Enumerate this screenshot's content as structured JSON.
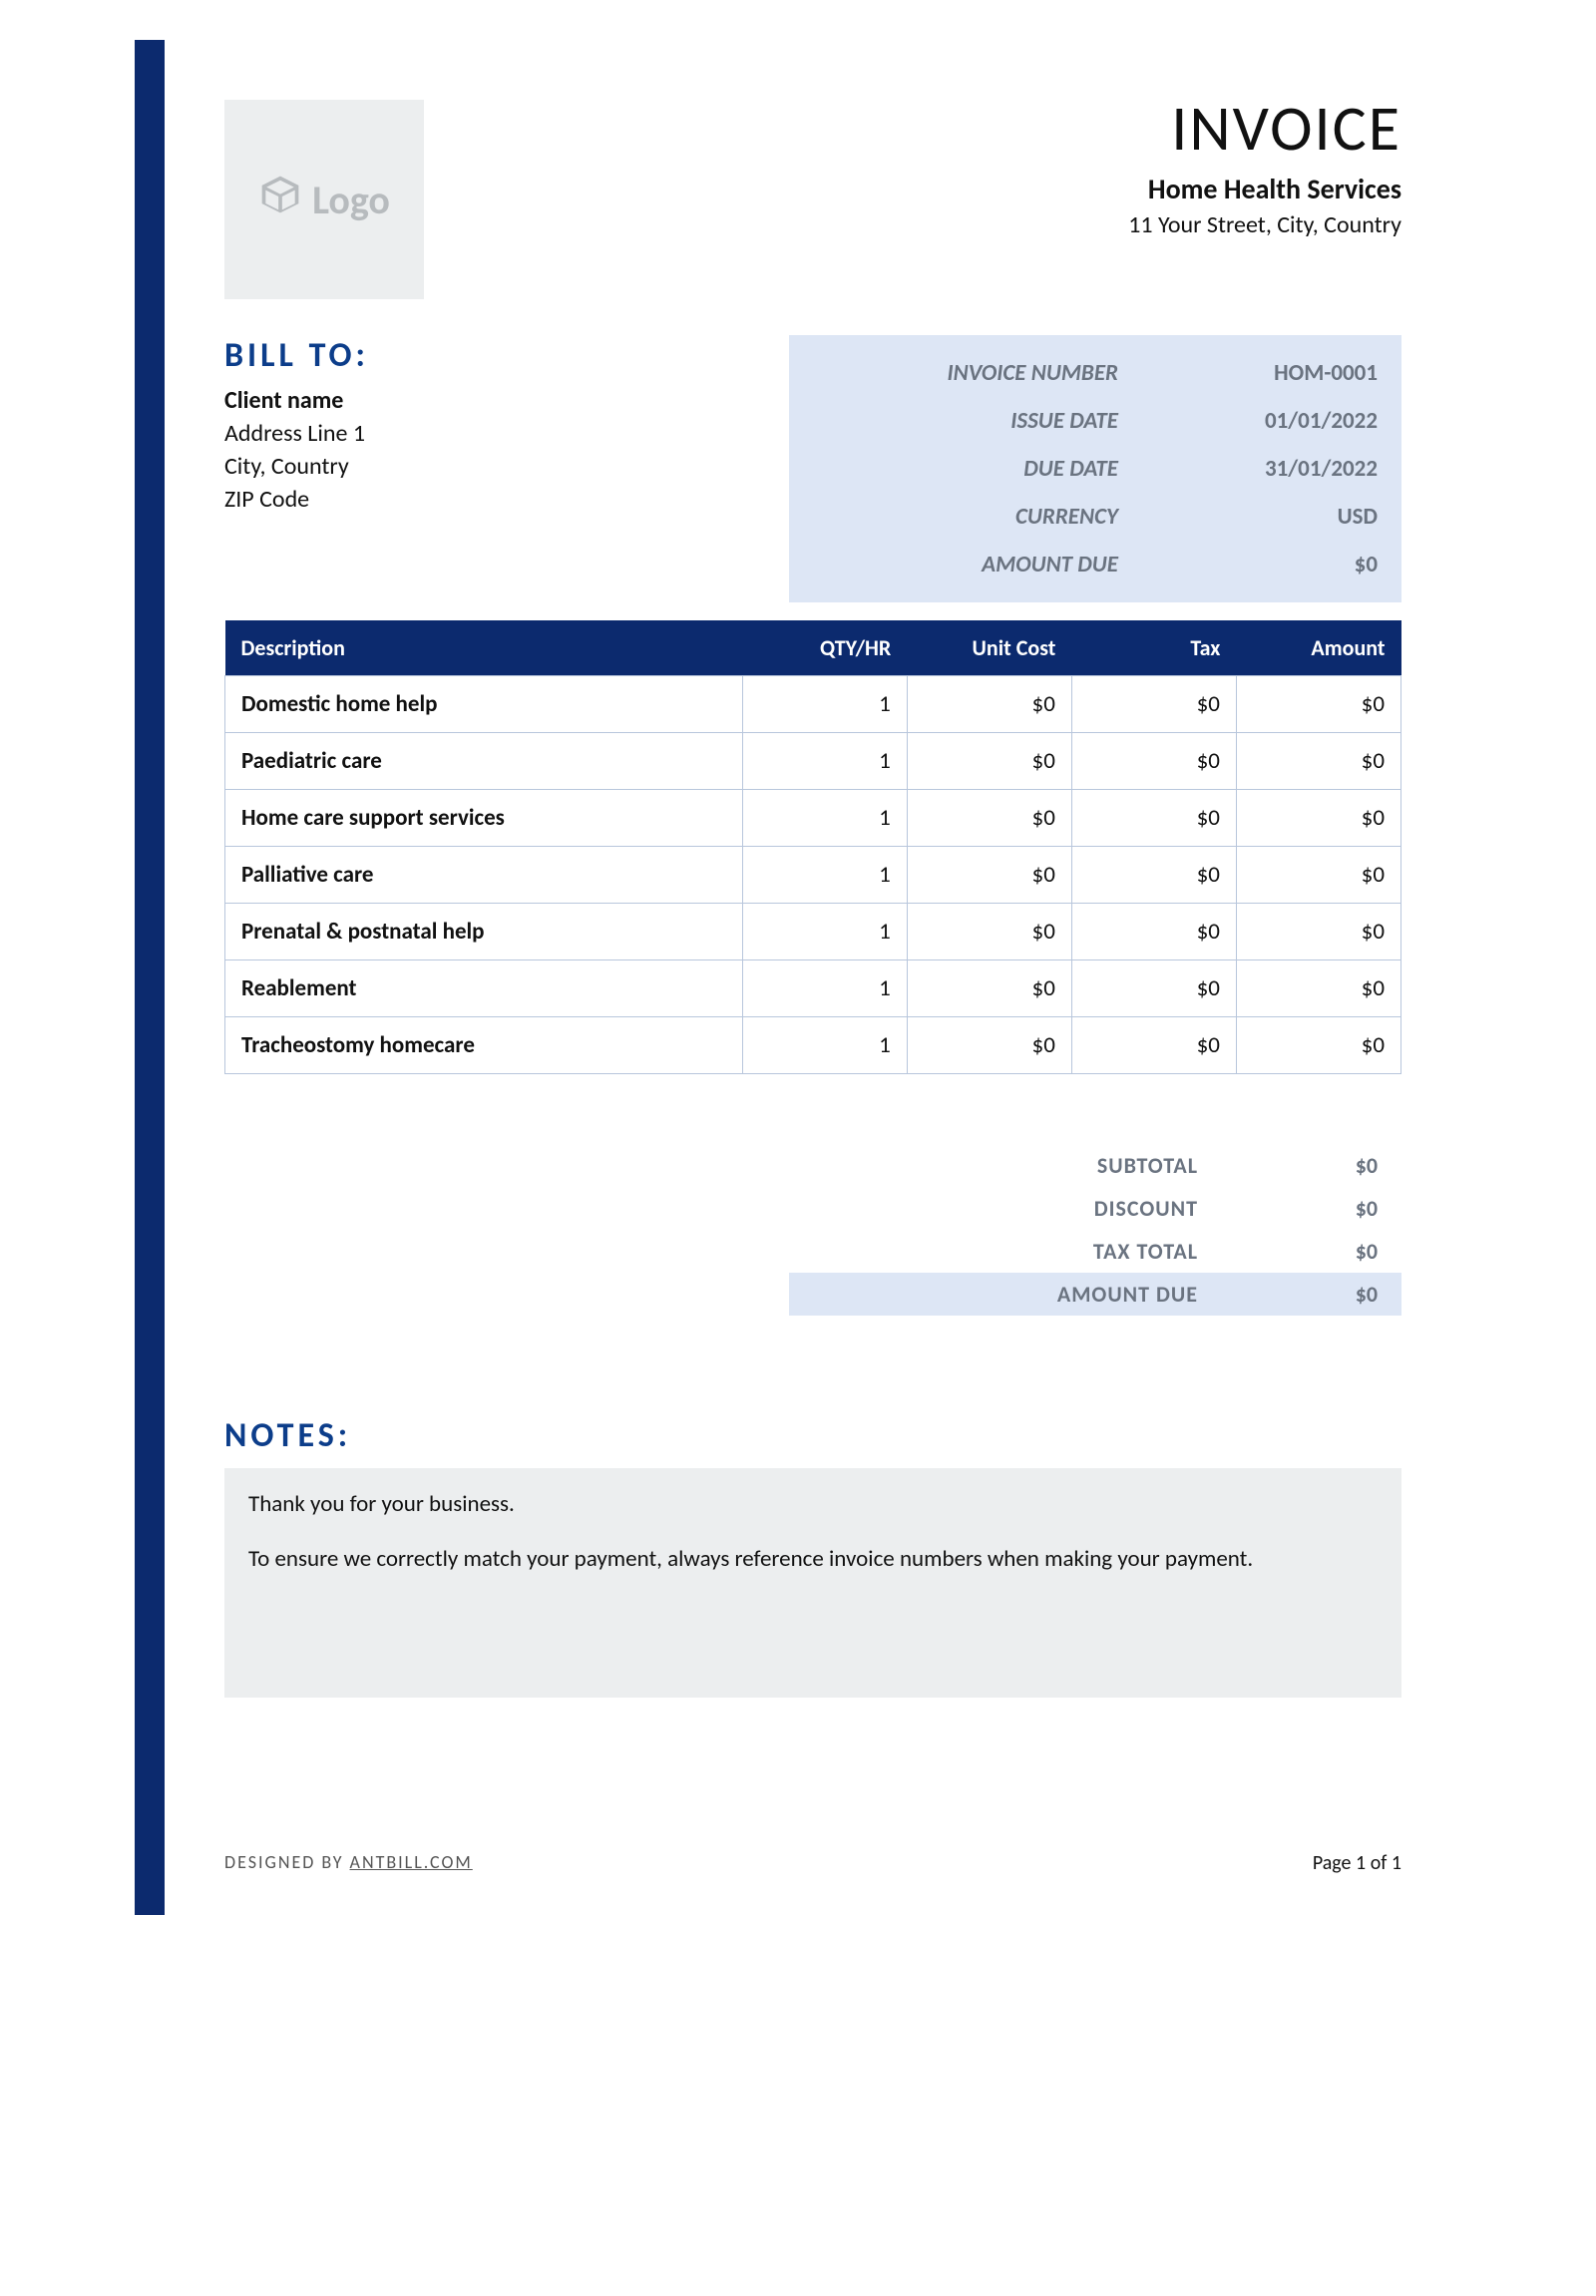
{
  "colors": {
    "accent_bar": "#0c2a6e",
    "table_header_bg": "#0c2a6e",
    "meta_box_bg": "#dde6f5",
    "notes_bg": "#eceeef",
    "logo_bg": "#eceeef",
    "text_muted": "#6a7380",
    "section_title": "#0c3d8a",
    "cell_border": "#b8c6dc"
  },
  "logo": {
    "text": "Logo"
  },
  "header": {
    "title": "INVOICE",
    "company_name": "Home Health Services",
    "company_address": "11 Your Street, City, Country"
  },
  "bill_to": {
    "heading": "BILL TO:",
    "client_name": "Client name",
    "lines": [
      "Address Line 1",
      "City, Country",
      "ZIP Code"
    ]
  },
  "meta": {
    "rows": [
      {
        "label": "INVOICE NUMBER",
        "value": "HOM-0001"
      },
      {
        "label": "ISSUE DATE",
        "value": "01/01/2022"
      },
      {
        "label": "DUE DATE",
        "value": "31/01/2022"
      },
      {
        "label": "CURRENCY",
        "value": "USD"
      },
      {
        "label": "AMOUNT DUE",
        "value": "$0"
      }
    ]
  },
  "table": {
    "columns": [
      "Description",
      "QTY/HR",
      "Unit Cost",
      "Tax",
      "Amount"
    ],
    "col_widths_pct": [
      44,
      14,
      14,
      14,
      14
    ],
    "rows": [
      {
        "desc": "Domestic home help",
        "qty": "1",
        "unit": "$0",
        "tax": "$0",
        "amount": "$0"
      },
      {
        "desc": "Paediatric care",
        "qty": "1",
        "unit": "$0",
        "tax": "$0",
        "amount": "$0"
      },
      {
        "desc": "Home care support services",
        "qty": "1",
        "unit": "$0",
        "tax": "$0",
        "amount": "$0"
      },
      {
        "desc": "Palliative care",
        "qty": "1",
        "unit": "$0",
        "tax": "$0",
        "amount": "$0"
      },
      {
        "desc": "Prenatal & postnatal help",
        "qty": "1",
        "unit": "$0",
        "tax": "$0",
        "amount": "$0"
      },
      {
        "desc": "Reablement",
        "qty": "1",
        "unit": "$0",
        "tax": "$0",
        "amount": "$0"
      },
      {
        "desc": "Tracheostomy homecare",
        "qty": "1",
        "unit": "$0",
        "tax": "$0",
        "amount": "$0"
      }
    ]
  },
  "totals": {
    "rows": [
      {
        "label": "SUBTOTAL",
        "value": "$0",
        "highlight": false
      },
      {
        "label": "DISCOUNT",
        "value": "$0",
        "highlight": false
      },
      {
        "label": "TAX TOTAL",
        "value": "$0",
        "highlight": false
      },
      {
        "label": "AMOUNT DUE",
        "value": "$0",
        "highlight": true
      }
    ]
  },
  "notes": {
    "heading": "NOTES:",
    "paragraphs": [
      "Thank you for your business.",
      "To ensure we correctly match your payment, always reference invoice numbers when making your payment."
    ]
  },
  "footer": {
    "credit_prefix": "DESIGNED BY ",
    "credit_link": "ANTBILL.COM",
    "page": "Page 1 of 1"
  }
}
